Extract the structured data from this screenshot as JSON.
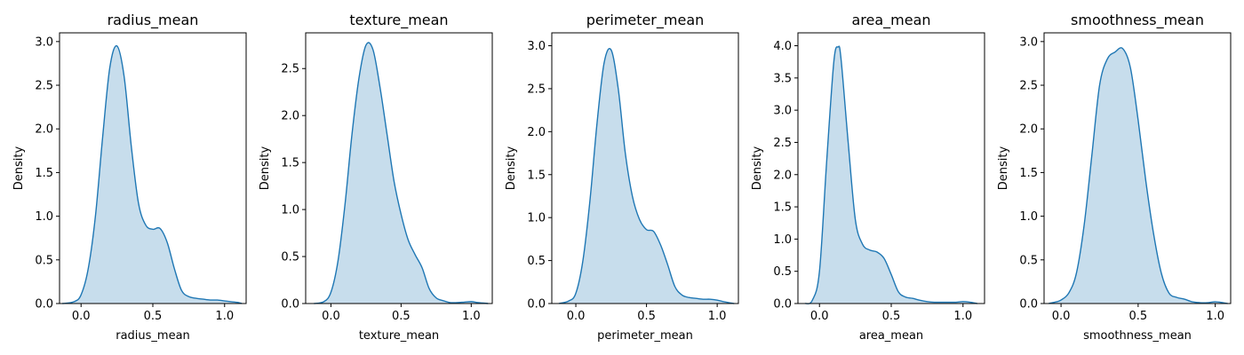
{
  "chart_data": [
    {
      "type": "area",
      "title": "radius_mean",
      "xlabel": "radius_mean",
      "ylabel": "Density",
      "xlim": [
        -0.15,
        1.15
      ],
      "ylim": [
        0,
        3.1
      ],
      "xticks": [
        0.0,
        0.5,
        1.0
      ],
      "xtick_labels": [
        "0.0",
        "0.5",
        "1.0"
      ],
      "yticks": [
        0.0,
        0.5,
        1.0,
        1.5,
        2.0,
        2.5,
        3.0
      ],
      "ytick_labels": [
        "0.0",
        "0.5",
        "1.0",
        "1.5",
        "2.0",
        "2.5",
        "3.0"
      ],
      "grid": false,
      "color": "#1f77b4",
      "x": [
        -0.13,
        -0.05,
        0.0,
        0.05,
        0.1,
        0.15,
        0.2,
        0.25,
        0.3,
        0.35,
        0.4,
        0.45,
        0.5,
        0.55,
        0.6,
        0.65,
        0.7,
        0.75,
        0.8,
        0.85,
        0.9,
        0.95,
        1.0,
        1.05,
        1.1,
        1.12
      ],
      "y": [
        0.0,
        0.02,
        0.1,
        0.4,
        1.0,
        1.9,
        2.7,
        2.95,
        2.6,
        1.8,
        1.15,
        0.9,
        0.85,
        0.86,
        0.7,
        0.4,
        0.15,
        0.08,
        0.06,
        0.05,
        0.04,
        0.04,
        0.03,
        0.02,
        0.01,
        0.0
      ]
    },
    {
      "type": "area",
      "title": "texture_mean",
      "xlabel": "texture_mean",
      "ylabel": "Density",
      "xlim": [
        -0.18,
        1.15
      ],
      "ylim": [
        0,
        2.88
      ],
      "xticks": [
        0.0,
        0.5,
        1.0
      ],
      "xtick_labels": [
        "0.0",
        "0.5",
        "1.0"
      ],
      "yticks": [
        0.0,
        0.5,
        1.0,
        1.5,
        2.0,
        2.5
      ],
      "ytick_labels": [
        "0.0",
        "0.5",
        "1.0",
        "1.5",
        "2.0",
        "2.5"
      ],
      "grid": false,
      "color": "#1f77b4",
      "x": [
        -0.12,
        -0.05,
        0.0,
        0.05,
        0.1,
        0.15,
        0.2,
        0.25,
        0.3,
        0.35,
        0.4,
        0.45,
        0.5,
        0.55,
        0.6,
        0.65,
        0.7,
        0.75,
        0.8,
        0.85,
        0.9,
        0.95,
        1.0,
        1.05,
        1.12
      ],
      "y": [
        0.0,
        0.02,
        0.12,
        0.45,
        1.05,
        1.8,
        2.4,
        2.75,
        2.7,
        2.3,
        1.8,
        1.3,
        0.95,
        0.68,
        0.52,
        0.38,
        0.16,
        0.06,
        0.03,
        0.01,
        0.01,
        0.015,
        0.02,
        0.01,
        0.0
      ]
    },
    {
      "type": "area",
      "title": "perimeter_mean",
      "xlabel": "perimeter_mean",
      "ylabel": "Density",
      "xlim": [
        -0.17,
        1.15
      ],
      "ylim": [
        0,
        3.15
      ],
      "xticks": [
        0.0,
        0.5,
        1.0
      ],
      "xtick_labels": [
        "0.0",
        "0.5",
        "1.0"
      ],
      "yticks": [
        0.0,
        0.5,
        1.0,
        1.5,
        2.0,
        2.5,
        3.0
      ],
      "ytick_labels": [
        "0.0",
        "0.5",
        "1.0",
        "1.5",
        "2.0",
        "2.5",
        "3.0"
      ],
      "grid": false,
      "color": "#1f77b4",
      "x": [
        -0.12,
        -0.05,
        0.0,
        0.05,
        0.1,
        0.15,
        0.2,
        0.25,
        0.3,
        0.35,
        0.4,
        0.45,
        0.5,
        0.55,
        0.6,
        0.65,
        0.7,
        0.75,
        0.8,
        0.85,
        0.9,
        0.95,
        1.0,
        1.05,
        1.12
      ],
      "y": [
        0.0,
        0.03,
        0.12,
        0.5,
        1.2,
        2.1,
        2.8,
        2.95,
        2.5,
        1.75,
        1.25,
        0.98,
        0.86,
        0.84,
        0.68,
        0.45,
        0.2,
        0.1,
        0.07,
        0.06,
        0.05,
        0.05,
        0.04,
        0.02,
        0.0
      ]
    },
    {
      "type": "area",
      "title": "area_mean",
      "xlabel": "area_mean",
      "ylabel": "Density",
      "xlim": [
        -0.15,
        1.15
      ],
      "ylim": [
        0,
        4.2
      ],
      "xticks": [
        0.0,
        0.5,
        1.0
      ],
      "xtick_labels": [
        "0.0",
        "0.5",
        "1.0"
      ],
      "yticks": [
        0.0,
        0.5,
        1.0,
        1.5,
        2.0,
        2.5,
        3.0,
        3.5,
        4.0
      ],
      "ytick_labels": [
        "0.0",
        "0.5",
        "1.0",
        "1.5",
        "2.0",
        "2.5",
        "3.0",
        "3.5",
        "4.0"
      ],
      "grid": false,
      "color": "#1f77b4",
      "x": [
        -0.1,
        -0.05,
        0.0,
        0.05,
        0.1,
        0.13,
        0.15,
        0.2,
        0.25,
        0.3,
        0.35,
        0.4,
        0.45,
        0.5,
        0.55,
        0.6,
        0.65,
        0.7,
        0.75,
        0.8,
        0.85,
        0.9,
        0.95,
        1.0,
        1.05,
        1.1
      ],
      "y": [
        0.0,
        0.05,
        0.5,
        2.2,
        3.75,
        3.98,
        3.8,
        2.5,
        1.3,
        0.92,
        0.83,
        0.8,
        0.7,
        0.45,
        0.18,
        0.1,
        0.08,
        0.05,
        0.03,
        0.02,
        0.02,
        0.02,
        0.02,
        0.03,
        0.02,
        0.0
      ]
    },
    {
      "type": "area",
      "title": "smoothness_mean",
      "xlabel": "smoothness_mean",
      "ylabel": "Density",
      "xlim": [
        -0.11,
        1.1
      ],
      "ylim": [
        0,
        3.1
      ],
      "xticks": [
        0.0,
        0.5,
        1.0
      ],
      "xtick_labels": [
        "0.0",
        "0.5",
        "1.0"
      ],
      "yticks": [
        0.0,
        0.5,
        1.0,
        1.5,
        2.0,
        2.5,
        3.0
      ],
      "ytick_labels": [
        "0.0",
        "0.5",
        "1.0",
        "1.5",
        "2.0",
        "2.5",
        "3.0"
      ],
      "grid": false,
      "color": "#1f77b4",
      "x": [
        -0.08,
        -0.03,
        0.0,
        0.05,
        0.1,
        0.15,
        0.2,
        0.25,
        0.3,
        0.35,
        0.4,
        0.45,
        0.5,
        0.55,
        0.6,
        0.65,
        0.7,
        0.75,
        0.8,
        0.85,
        0.9,
        0.95,
        1.0,
        1.05,
        1.08
      ],
      "y": [
        0.0,
        0.02,
        0.04,
        0.12,
        0.35,
        0.9,
        1.7,
        2.5,
        2.8,
        2.88,
        2.92,
        2.7,
        2.1,
        1.4,
        0.8,
        0.35,
        0.12,
        0.07,
        0.05,
        0.02,
        0.01,
        0.01,
        0.02,
        0.01,
        0.0
      ]
    }
  ]
}
